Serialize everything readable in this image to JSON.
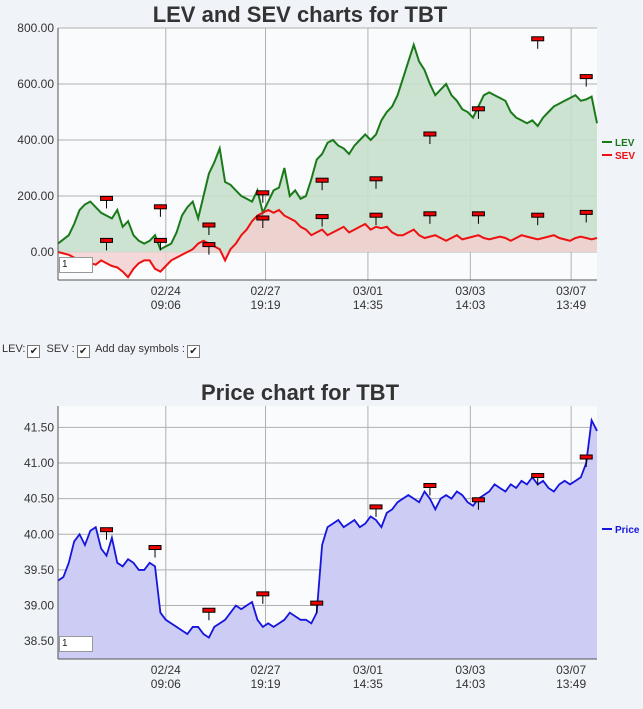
{
  "controls": {
    "lev_label": "LEV:",
    "sev_label": "SEV :",
    "day_symbols_label": "Add day symbols :"
  },
  "chart_data": [
    {
      "type": "area",
      "title": "LEV and SEV charts for TBT",
      "ylim": [
        -100,
        800
      ],
      "yticks": [
        "800.00",
        "600.00",
        "400.00",
        "200.00",
        "0.00"
      ],
      "yticks_values": [
        800,
        600,
        400,
        200,
        0
      ],
      "xtick_labels": [
        [
          "02/24",
          "09:06"
        ],
        [
          "02/27",
          "19:19"
        ],
        [
          "03/01",
          "14:35"
        ],
        [
          "03/03",
          "14:03"
        ],
        [
          "03/07",
          "13:49"
        ]
      ],
      "input_value": "1",
      "grid": true,
      "legend_position": "right",
      "colors": {
        "LEV": "#1a7a1a",
        "SEV": "#ee1111",
        "lev_fill": "#c8e0cc",
        "sev_fill": "#f2d0d0",
        "overlap_fill": "#d4c4b4"
      },
      "series": [
        {
          "name": "LEV",
          "x": [
            0,
            2,
            3,
            4,
            5,
            6,
            7,
            8,
            9,
            10,
            11,
            12,
            13,
            14,
            15,
            16,
            17,
            18,
            19,
            20,
            21,
            22,
            23,
            24,
            25,
            26,
            27,
            28,
            29,
            30,
            31,
            32,
            33,
            34,
            35,
            36,
            37,
            38,
            39,
            40,
            41,
            42,
            43,
            44,
            45,
            46,
            47,
            48,
            49,
            50,
            51,
            52,
            53,
            54,
            55,
            56,
            57,
            58,
            59,
            60,
            61,
            62,
            63,
            64,
            65,
            66,
            67,
            68,
            69,
            70,
            71,
            72,
            73,
            74,
            75,
            76,
            77,
            78,
            79,
            80,
            81,
            82,
            83,
            84,
            85,
            86,
            87,
            88,
            89,
            90,
            91,
            92,
            93,
            94,
            95,
            96,
            97,
            98,
            99,
            100
          ],
          "values": [
            30,
            60,
            100,
            150,
            170,
            180,
            160,
            140,
            130,
            120,
            150,
            90,
            110,
            60,
            40,
            30,
            40,
            60,
            10,
            20,
            30,
            70,
            130,
            160,
            180,
            120,
            200,
            280,
            320,
            370,
            250,
            240,
            220,
            200,
            190,
            180,
            220,
            140,
            180,
            220,
            230,
            300,
            200,
            220,
            190,
            200,
            260,
            330,
            350,
            390,
            400,
            380,
            370,
            350,
            380,
            400,
            420,
            400,
            420,
            470,
            500,
            520,
            560,
            620,
            680,
            740,
            680,
            650,
            600,
            560,
            580,
            600,
            560,
            540,
            510,
            500,
            480,
            520,
            560,
            570,
            560,
            550,
            540,
            500,
            480,
            470,
            460,
            470,
            450,
            480,
            500,
            520,
            530,
            540,
            550,
            560,
            540,
            545,
            555,
            460
          ]
        },
        {
          "name": "SEV",
          "x": [
            0,
            2,
            3,
            4,
            5,
            6,
            7,
            8,
            9,
            10,
            11,
            12,
            13,
            14,
            15,
            16,
            17,
            18,
            19,
            20,
            21,
            22,
            23,
            24,
            25,
            26,
            27,
            28,
            29,
            30,
            31,
            32,
            33,
            34,
            35,
            36,
            37,
            38,
            39,
            40,
            41,
            42,
            43,
            44,
            45,
            46,
            47,
            48,
            49,
            50,
            51,
            52,
            53,
            54,
            55,
            56,
            57,
            58,
            59,
            60,
            61,
            62,
            63,
            64,
            65,
            66,
            67,
            68,
            69,
            70,
            71,
            72,
            73,
            74,
            75,
            76,
            77,
            78,
            79,
            80,
            81,
            82,
            83,
            84,
            85,
            86,
            87,
            88,
            89,
            90,
            91,
            92,
            93,
            94,
            95,
            96,
            97,
            98,
            99,
            100
          ],
          "values": [
            0,
            -10,
            -20,
            -35,
            -30,
            -40,
            -45,
            -30,
            -40,
            -50,
            -55,
            -70,
            -90,
            -60,
            -40,
            -30,
            -30,
            -60,
            -70,
            -50,
            -30,
            -20,
            -10,
            0,
            10,
            30,
            40,
            30,
            20,
            10,
            -30,
            10,
            30,
            60,
            80,
            110,
            130,
            140,
            150,
            140,
            150,
            130,
            120,
            110,
            90,
            80,
            60,
            70,
            80,
            60,
            70,
            80,
            90,
            70,
            80,
            90,
            100,
            80,
            90,
            85,
            90,
            70,
            60,
            60,
            70,
            80,
            60,
            50,
            55,
            60,
            50,
            40,
            50,
            60,
            45,
            50,
            55,
            60,
            50,
            45,
            50,
            55,
            50,
            40,
            50,
            60,
            55,
            50,
            45,
            50,
            55,
            60,
            50,
            45,
            40,
            50,
            55,
            50,
            45,
            50
          ]
        }
      ],
      "day_markers": [
        {
          "x": 9,
          "lev": 170,
          "sev": 20
        },
        {
          "x": 19,
          "lev": 140,
          "sev": 20
        },
        {
          "x": 28,
          "lev": 75,
          "sev": 5
        },
        {
          "x": 38,
          "lev": 190,
          "sev": 100
        },
        {
          "x": 49,
          "lev": 235,
          "sev": 105
        },
        {
          "x": 59,
          "lev": 240,
          "sev": 110
        },
        {
          "x": 69,
          "lev": 400,
          "sev": 115
        },
        {
          "x": 78,
          "lev": 490,
          "sev": 115
        },
        {
          "x": 89,
          "lev": 740,
          "sev": 110
        },
        {
          "x": 98,
          "lev": 605,
          "sev": 120
        }
      ]
    },
    {
      "type": "area",
      "title": "Price chart for TBT",
      "ylim": [
        38.25,
        41.8
      ],
      "yticks": [
        "41.50",
        "41.00",
        "40.50",
        "40.00",
        "39.50",
        "39.00",
        "38.50"
      ],
      "yticks_values": [
        41.5,
        41.0,
        40.5,
        40.0,
        39.5,
        39.0,
        38.5
      ],
      "xtick_labels": [
        [
          "02/24",
          "09:06"
        ],
        [
          "02/27",
          "19:19"
        ],
        [
          "03/01",
          "14:35"
        ],
        [
          "03/03",
          "14:03"
        ],
        [
          "03/07",
          "13:49"
        ]
      ],
      "input_value": "1",
      "grid": true,
      "legend_position": "right",
      "colors": {
        "Price": "#1515dd",
        "fill": "#ccccf5"
      },
      "series": [
        {
          "name": "Price",
          "x": [
            0,
            1,
            2,
            3,
            4,
            5,
            6,
            7,
            8,
            9,
            10,
            11,
            12,
            13,
            14,
            15,
            16,
            17,
            18,
            19,
            20,
            21,
            22,
            23,
            24,
            25,
            26,
            27,
            28,
            29,
            30,
            31,
            32,
            33,
            34,
            35,
            36,
            37,
            38,
            39,
            40,
            41,
            42,
            43,
            44,
            45,
            46,
            47,
            48,
            49,
            50,
            51,
            52,
            53,
            54,
            55,
            56,
            57,
            58,
            59,
            60,
            61,
            62,
            63,
            64,
            65,
            66,
            67,
            68,
            69,
            70,
            71,
            72,
            73,
            74,
            75,
            76,
            77,
            78,
            79,
            80,
            81,
            82,
            83,
            84,
            85,
            86,
            87,
            88,
            89,
            90,
            91,
            92,
            93,
            94,
            95,
            96,
            97,
            98,
            99,
            100
          ],
          "values": [
            39.35,
            39.4,
            39.6,
            39.9,
            40.0,
            39.85,
            40.05,
            40.1,
            39.8,
            39.7,
            39.95,
            39.6,
            39.55,
            39.65,
            39.6,
            39.5,
            39.5,
            39.6,
            39.55,
            38.9,
            38.8,
            38.75,
            38.7,
            38.65,
            38.6,
            38.7,
            38.7,
            38.6,
            38.55,
            38.7,
            38.75,
            38.8,
            38.9,
            39.0,
            38.95,
            39.0,
            39.05,
            38.8,
            38.7,
            38.75,
            38.7,
            38.75,
            38.8,
            38.9,
            38.85,
            38.8,
            38.8,
            38.75,
            38.9,
            39.85,
            40.1,
            40.15,
            40.2,
            40.1,
            40.15,
            40.2,
            40.1,
            40.15,
            40.25,
            40.2,
            40.1,
            40.3,
            40.35,
            40.45,
            40.5,
            40.55,
            40.5,
            40.45,
            40.6,
            40.5,
            40.35,
            40.5,
            40.55,
            40.5,
            40.6,
            40.55,
            40.45,
            40.4,
            40.5,
            40.55,
            40.6,
            40.7,
            40.65,
            40.6,
            40.7,
            40.65,
            40.75,
            40.7,
            40.8,
            40.7,
            40.75,
            40.65,
            40.6,
            40.7,
            40.75,
            40.7,
            40.75,
            40.8,
            41.0,
            41.6,
            41.45
          ]
        }
      ],
      "day_markers": [
        {
          "x": 9,
          "price": 39.98
        },
        {
          "x": 18,
          "price": 39.73
        },
        {
          "x": 28,
          "price": 38.85
        },
        {
          "x": 38,
          "price": 39.08
        },
        {
          "x": 48,
          "price": 38.95
        },
        {
          "x": 59,
          "price": 40.3
        },
        {
          "x": 69,
          "price": 40.6
        },
        {
          "x": 78,
          "price": 40.4
        },
        {
          "x": 89,
          "price": 40.74
        },
        {
          "x": 98,
          "price": 41.0
        }
      ]
    }
  ]
}
